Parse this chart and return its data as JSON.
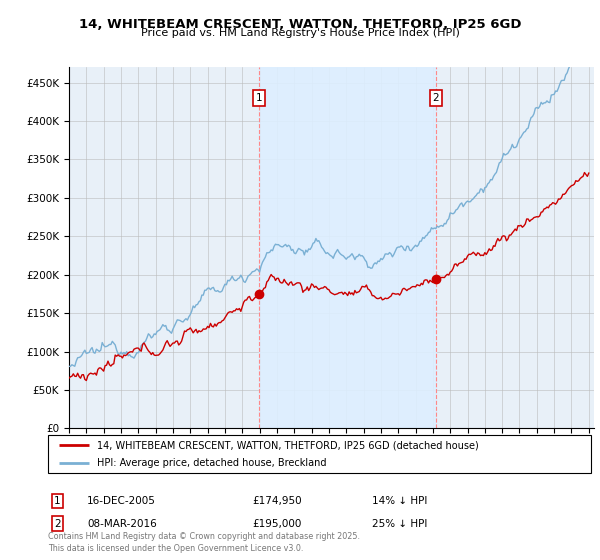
{
  "title": "14, WHITEBEAM CRESCENT, WATTON, THETFORD, IP25 6GD",
  "subtitle": "Price paid vs. HM Land Registry's House Price Index (HPI)",
  "legend_line1": "14, WHITEBEAM CRESCENT, WATTON, THETFORD, IP25 6GD (detached house)",
  "legend_line2": "HPI: Average price, detached house, Breckland",
  "annotation1_date": "16-DEC-2005",
  "annotation1_price": "£174,950",
  "annotation1_hpi": "14% ↓ HPI",
  "annotation2_date": "08-MAR-2016",
  "annotation2_price": "£195,000",
  "annotation2_hpi": "25% ↓ HPI",
  "footer": "Contains HM Land Registry data © Crown copyright and database right 2025.\nThis data is licensed under the Open Government Licence v3.0.",
  "sale1_year": 2005.96,
  "sale1_price": 174950,
  "sale2_year": 2016.18,
  "sale2_price": 195000,
  "line_color_price": "#cc0000",
  "line_color_hpi": "#7ab0d4",
  "shade_color": "#ddeeff",
  "background_color": "#e8f0f8",
  "ylim_min": 0,
  "ylim_max": 470000
}
